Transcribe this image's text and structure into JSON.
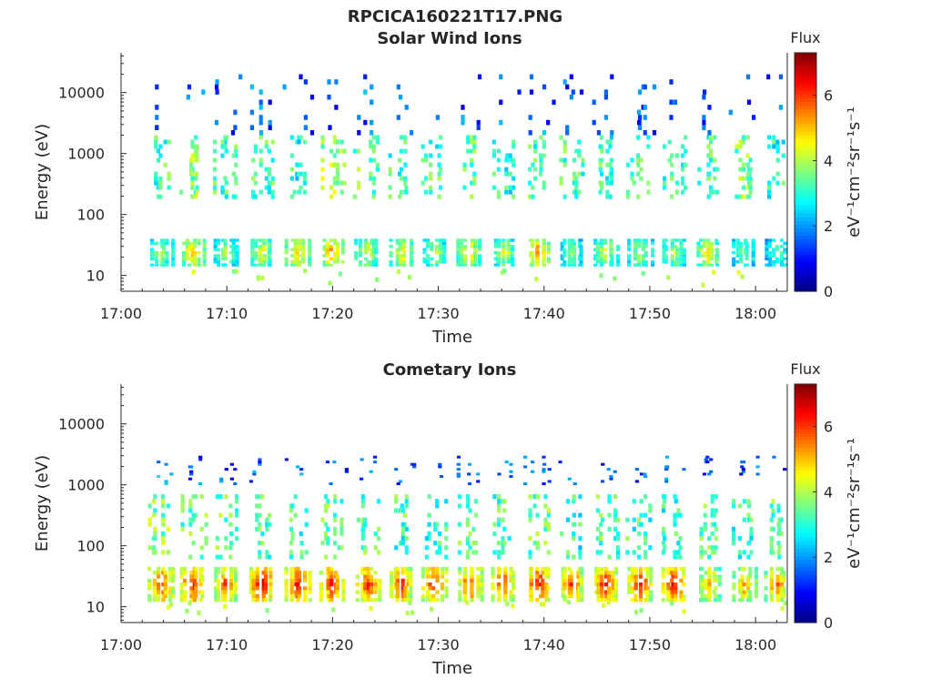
{
  "figure": {
    "title": "RPCICA160221T17.PNG"
  },
  "chart_data": [
    {
      "type": "heatmap",
      "title": "Solar Wind Ions",
      "xlabel": "Time",
      "ylabel": "Energy (eV)",
      "xlim": [
        "17:00",
        "18:03"
      ],
      "ylim": [
        5.5,
        45000
      ],
      "yscale": "log",
      "xticks": [
        "17:00",
        "17:10",
        "17:20",
        "17:30",
        "17:40",
        "17:50",
        "18:00"
      ],
      "yticks": [
        10,
        100,
        1000,
        10000
      ],
      "ytick_labels": [
        "10",
        "100",
        "1000",
        "10000"
      ],
      "colorbar": {
        "title": "Flux",
        "label": "eV⁻¹cm⁻²sr⁻¹s⁻¹",
        "range": [
          0,
          7.3
        ],
        "ticks": [
          0,
          2,
          4,
          6
        ],
        "tick_labels": [
          "0",
          "2",
          "4",
          "6"
        ],
        "colormap": "jet"
      },
      "bursts_minutes": [
        3.8,
        6.8,
        10.0,
        13.3,
        16.7,
        20.0,
        23.3,
        26.6,
        29.7,
        33.0,
        36.2,
        39.5,
        42.7,
        45.9,
        49.1,
        52.3,
        55.6,
        59.0,
        62.0
      ],
      "bands": [
        {
          "name": "low",
          "emin": 14,
          "emax": 40,
          "flux": [
            4.2,
            5.3,
            4.0,
            4.8,
            5.2,
            5.6,
            4.6,
            4.9,
            4.2,
            4.9,
            4.4,
            5.6,
            4.0,
            4.4,
            4.2,
            4.3,
            4.9,
            3.8,
            3.5
          ]
        },
        {
          "name": "mid",
          "emin": 180,
          "emax": 2000,
          "flux": [
            3.2,
            3.6,
            3.3,
            3.2,
            3.0,
            3.8,
            3.5,
            3.1,
            3.2,
            3.4,
            3.0,
            3.2,
            3.3,
            3.1,
            3.4,
            3.0,
            3.2,
            3.6,
            3.0
          ]
        },
        {
          "name": "high",
          "emin": 2000,
          "emax": 20000,
          "flux": [
            1.6,
            1.5,
            1.5,
            1.6,
            1.4,
            1.5,
            1.6,
            1.5,
            1.4,
            1.6,
            1.5,
            1.6,
            1.4,
            1.5,
            1.5,
            1.6,
            1.5,
            1.5,
            1.4
          ]
        }
      ]
    },
    {
      "type": "heatmap",
      "title": "Cometary Ions",
      "xlabel": "Time",
      "ylabel": "Energy (eV)",
      "xlim": [
        "17:00",
        "18:03"
      ],
      "ylim": [
        5.5,
        45000
      ],
      "yscale": "log",
      "xticks": [
        "17:00",
        "17:10",
        "17:20",
        "17:30",
        "17:40",
        "17:50",
        "18:00"
      ],
      "yticks": [
        10,
        100,
        1000,
        10000
      ],
      "ytick_labels": [
        "10",
        "100",
        "1000",
        "10000"
      ],
      "colorbar": {
        "title": "Flux",
        "label": "eV⁻¹cm⁻²sr⁻¹s⁻¹",
        "range": [
          0,
          7.3
        ],
        "ticks": [
          0,
          2,
          4,
          6
        ],
        "tick_labels": [
          "0",
          "2",
          "4",
          "6"
        ],
        "colormap": "jet"
      },
      "bursts_minutes": [
        3.8,
        6.8,
        10.0,
        13.3,
        16.7,
        20.0,
        23.3,
        26.6,
        29.7,
        33.0,
        36.2,
        39.5,
        42.7,
        45.9,
        49.1,
        52.3,
        55.6,
        59.0,
        62.0
      ],
      "bands": [
        {
          "name": "low",
          "emin": 12,
          "emax": 45,
          "flux": [
            6.2,
            6.5,
            6.0,
            6.8,
            6.7,
            6.6,
            6.4,
            6.3,
            6.4,
            6.0,
            6.2,
            6.8,
            6.1,
            6.5,
            6.3,
            6.8,
            5.2,
            5.5,
            5.6
          ]
        },
        {
          "name": "mid",
          "emin": 60,
          "emax": 700,
          "flux": [
            3.6,
            3.4,
            3.5,
            3.3,
            3.2,
            3.4,
            3.3,
            3.2,
            3.1,
            3.3,
            3.2,
            3.4,
            3.0,
            3.3,
            3.1,
            3.0,
            3.3,
            3.2,
            3.4
          ]
        },
        {
          "name": "high",
          "emin": 1000,
          "emax": 3000,
          "flux": [
            1.8,
            1.5,
            1.4,
            1.6,
            1.5,
            1.5,
            1.4,
            1.5,
            1.4,
            1.5,
            1.4,
            1.5,
            1.4,
            1.5,
            1.4,
            1.5,
            1.5,
            1.4,
            1.4
          ]
        }
      ]
    }
  ]
}
